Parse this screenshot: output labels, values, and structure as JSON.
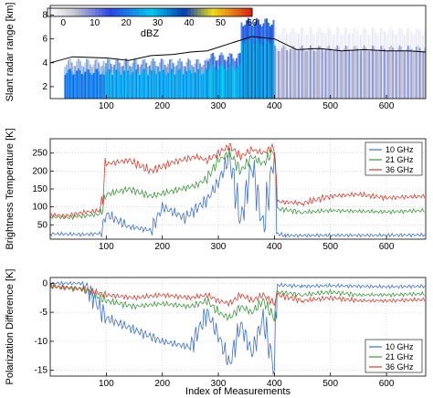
{
  "chart_data": [
    {
      "type": "heatmap",
      "ylabel": "Slant radar range [km]",
      "x_ticks": [
        100,
        200,
        300,
        400,
        500,
        600
      ],
      "y_ticks": [
        2,
        4,
        6,
        8
      ],
      "xlim": [
        0,
        670
      ],
      "ylim": [
        1,
        8.8
      ],
      "colorbar": {
        "label": "dBZ",
        "ticks": [
          0,
          10,
          20,
          30,
          40,
          50,
          60
        ],
        "range": [
          -5,
          60
        ]
      },
      "columns": [
        {
          "x": [
            25,
            95
          ],
          "top": 4.0,
          "dbz": 20
        },
        {
          "x": [
            95,
            280
          ],
          "top": 4.0,
          "dbz": 24
        },
        {
          "x": [
            280,
            340
          ],
          "top": 4.5,
          "dbz": 28
        },
        {
          "x": [
            340,
            400
          ],
          "top": 7.4,
          "dbz": 32
        },
        {
          "x": [
            400,
            670
          ],
          "top": 6.6,
          "dbz": 4
        }
      ],
      "line_series": {
        "name": "",
        "x": [
          0,
          40,
          100,
          140,
          180,
          220,
          250,
          280,
          320,
          360,
          400,
          440,
          480,
          520,
          560,
          600,
          640,
          670
        ],
        "y": [
          4.0,
          4.5,
          4.4,
          4.2,
          4.6,
          4.7,
          4.9,
          5.0,
          5.6,
          6.2,
          6.0,
          5.1,
          5.2,
          5.0,
          5.1,
          5.0,
          5.0,
          4.9
        ]
      }
    },
    {
      "type": "line",
      "ylabel": "Brightness Temperature [K]",
      "x_ticks": [
        100,
        200,
        300,
        400,
        500,
        600
      ],
      "y_ticks": [
        50,
        100,
        150,
        200,
        250
      ],
      "xlim": [
        0,
        670
      ],
      "ylim": [
        10,
        290
      ],
      "legend": "top-right",
      "series": [
        {
          "name": "10 GHz",
          "color": "#3b6fd8",
          "x": [
            0,
            60,
            90,
            100,
            140,
            180,
            200,
            240,
            280,
            300,
            320,
            340,
            360,
            380,
            400,
            405,
            420,
            500,
            600,
            670
          ],
          "y": [
            25,
            23,
            26,
            80,
            45,
            35,
            100,
            70,
            120,
            170,
            240,
            60,
            220,
            40,
            250,
            25,
            20,
            21,
            21,
            22
          ]
        },
        {
          "name": "21 GHz",
          "color": "#3a9a3a",
          "x": [
            0,
            30,
            60,
            90,
            100,
            140,
            180,
            220,
            260,
            280,
            300,
            320,
            340,
            360,
            380,
            400,
            405,
            450,
            500,
            550,
            600,
            670
          ],
          "y": [
            72,
            70,
            75,
            80,
            135,
            150,
            130,
            145,
            160,
            180,
            230,
            250,
            200,
            240,
            220,
            260,
            95,
            85,
            90,
            88,
            86,
            90
          ]
        },
        {
          "name": "36 GHz",
          "color": "#e03c2e",
          "x": [
            0,
            30,
            60,
            90,
            100,
            140,
            180,
            220,
            260,
            280,
            300,
            320,
            340,
            360,
            380,
            400,
            405,
            450,
            500,
            550,
            600,
            670
          ],
          "y": [
            78,
            75,
            85,
            90,
            220,
            230,
            200,
            225,
            240,
            230,
            250,
            270,
            240,
            260,
            250,
            270,
            115,
            110,
            130,
            135,
            125,
            130
          ]
        }
      ]
    },
    {
      "type": "line",
      "ylabel": "Polarization Difference [K]",
      "xlabel": "Index of Measurements",
      "x_ticks": [
        100,
        200,
        300,
        400,
        500,
        600
      ],
      "y_ticks": [
        0,
        -5,
        -10,
        -15
      ],
      "xlim": [
        0,
        670
      ],
      "ylim": [
        -16,
        1
      ],
      "legend": "bottom-right",
      "series": [
        {
          "name": "10 GHz",
          "color": "#3b6fd8",
          "x": [
            0,
            60,
            100,
            150,
            200,
            250,
            280,
            300,
            320,
            340,
            360,
            380,
            400,
            405,
            450,
            500,
            550,
            600,
            670
          ],
          "y": [
            0,
            0,
            -6,
            -8,
            -10,
            -11,
            -5,
            -9,
            -14,
            -7,
            -12,
            -6,
            -15,
            -0.3,
            -0.5,
            -0.4,
            -0.5,
            -0.6,
            -0.5
          ]
        },
        {
          "name": "21 GHz",
          "color": "#3a9a3a",
          "x": [
            0,
            60,
            100,
            150,
            200,
            250,
            280,
            300,
            320,
            340,
            360,
            380,
            400,
            405,
            450,
            500,
            550,
            600,
            670
          ],
          "y": [
            -0.5,
            -1,
            -3,
            -4,
            -3.5,
            -4,
            -3,
            -5,
            -6,
            -4,
            -5,
            -3,
            -6,
            -1.5,
            -2,
            -1.5,
            -2,
            -2,
            -1.8
          ]
        },
        {
          "name": "36 GHz",
          "color": "#e03c2e",
          "x": [
            0,
            60,
            100,
            150,
            200,
            250,
            280,
            300,
            320,
            340,
            360,
            380,
            400,
            405,
            450,
            500,
            550,
            600,
            670
          ],
          "y": [
            -0.5,
            -1,
            -2,
            -2.5,
            -2,
            -2.5,
            -2,
            -3,
            -3.5,
            -2,
            -3,
            -2,
            -3.5,
            -2,
            -3,
            -2.5,
            -3,
            -3,
            -2.8
          ]
        }
      ]
    }
  ]
}
